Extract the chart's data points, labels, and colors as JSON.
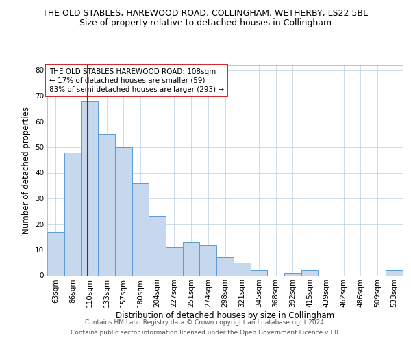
{
  "title1": "THE OLD STABLES, HAREWOOD ROAD, COLLINGHAM, WETHERBY, LS22 5BL",
  "title2": "Size of property relative to detached houses in Collingham",
  "xlabel": "Distribution of detached houses by size in Collingham",
  "ylabel": "Number of detached properties",
  "categories": [
    "63sqm",
    "86sqm",
    "110sqm",
    "133sqm",
    "157sqm",
    "180sqm",
    "204sqm",
    "227sqm",
    "251sqm",
    "274sqm",
    "298sqm",
    "321sqm",
    "345sqm",
    "368sqm",
    "392sqm",
    "415sqm",
    "439sqm",
    "462sqm",
    "486sqm",
    "509sqm",
    "533sqm"
  ],
  "values": [
    17,
    48,
    68,
    55,
    50,
    36,
    23,
    11,
    13,
    12,
    7,
    5,
    2,
    0,
    1,
    2,
    0,
    0,
    0,
    0,
    2
  ],
  "bar_color": "#c5d8ed",
  "bar_edge_color": "#5b9bd5",
  "reference_line_color": "#cc0000",
  "annotation_line1": "THE OLD STABLES HAREWOOD ROAD: 108sqm",
  "annotation_line2": "← 17% of detached houses are smaller (59)",
  "annotation_line3": "83% of semi-detached houses are larger (293) →",
  "annotation_box_color": "#ffffff",
  "annotation_box_edge": "#cc0000",
  "ylim": [
    0,
    82
  ],
  "yticks": [
    0,
    10,
    20,
    30,
    40,
    50,
    60,
    70,
    80
  ],
  "footer1": "Contains HM Land Registry data © Crown copyright and database right 2024.",
  "footer2": "Contains public sector information licensed under the Open Government Licence v3.0.",
  "bg_color": "#ffffff",
  "grid_color": "#b8cfe0",
  "title1_fontsize": 9,
  "title2_fontsize": 9,
  "xlabel_fontsize": 8.5,
  "ylabel_fontsize": 8.5,
  "tick_fontsize": 7.5,
  "annotation_fontsize": 7.5,
  "footer_fontsize": 6.5
}
